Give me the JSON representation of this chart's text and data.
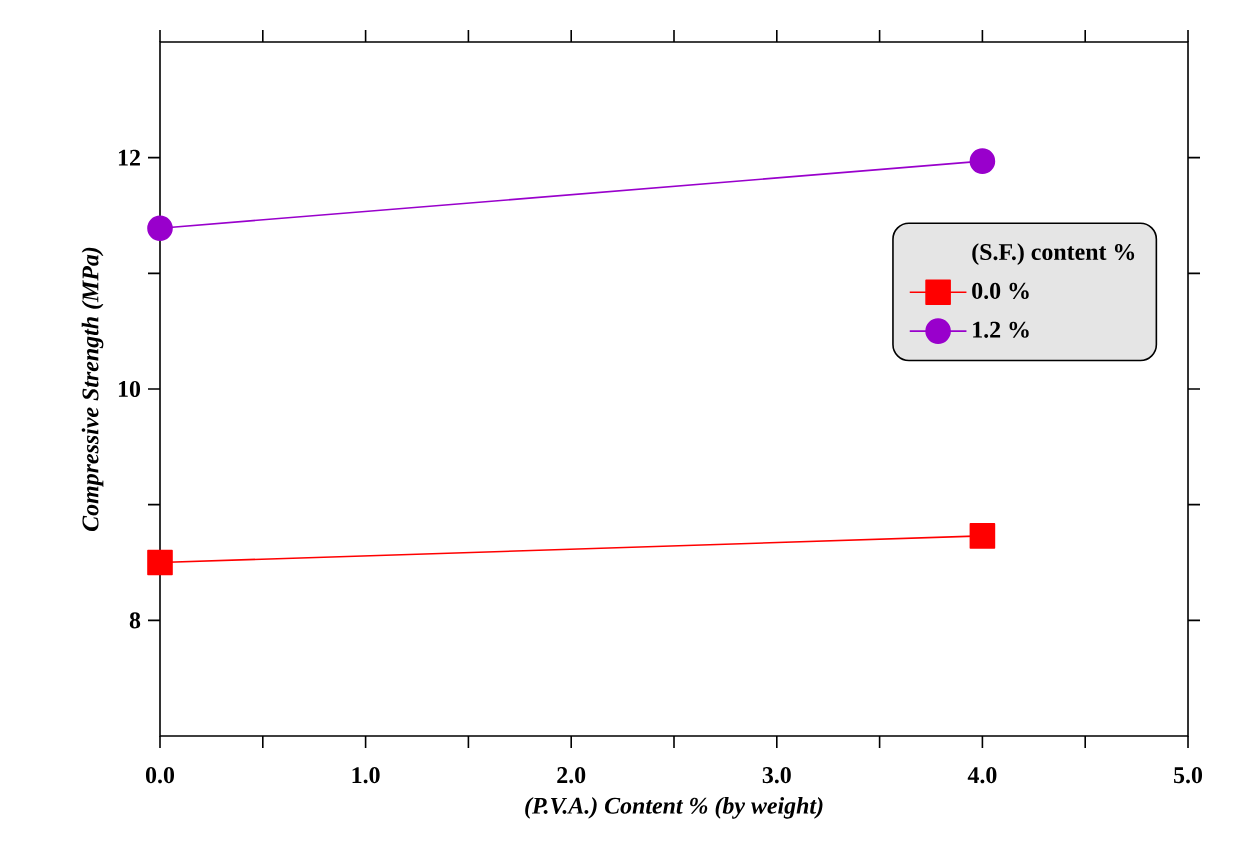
{
  "chart_data": {
    "type": "line",
    "xlabel": "(P.V.A.) Content % (by weight)",
    "ylabel": "Compressive Strength (MPa)",
    "legend_title": "(S.F.) content %",
    "x": [
      0,
      4
    ],
    "series": [
      {
        "name": "0.0 %",
        "color": "#ff0000",
        "marker": "square",
        "values": [
          8.5,
          8.73
        ]
      },
      {
        "name": "1.2 %",
        "color": "#9900cc",
        "marker": "circle",
        "values": [
          11.39,
          11.97
        ]
      }
    ],
    "xlim": [
      0,
      5
    ],
    "ylim": [
      7,
      13
    ],
    "xticks": [
      {
        "value": 0,
        "label": "0.0"
      },
      {
        "value": 0.5,
        "label": null
      },
      {
        "value": 1,
        "label": "1.0"
      },
      {
        "value": 1.5,
        "label": null
      },
      {
        "value": 2,
        "label": "2.0"
      },
      {
        "value": 2.5,
        "label": null
      },
      {
        "value": 3,
        "label": "3.0"
      },
      {
        "value": 3.5,
        "label": null
      },
      {
        "value": 4,
        "label": "4.0"
      },
      {
        "value": 4.5,
        "label": null
      },
      {
        "value": 5,
        "label": "5.0"
      }
    ],
    "yticks": [
      8,
      {
        "value": 9,
        "label": null
      },
      10,
      {
        "value": 11,
        "label": null
      },
      12
    ],
    "legend": "right",
    "grid": false,
    "line_style": "solid"
  }
}
